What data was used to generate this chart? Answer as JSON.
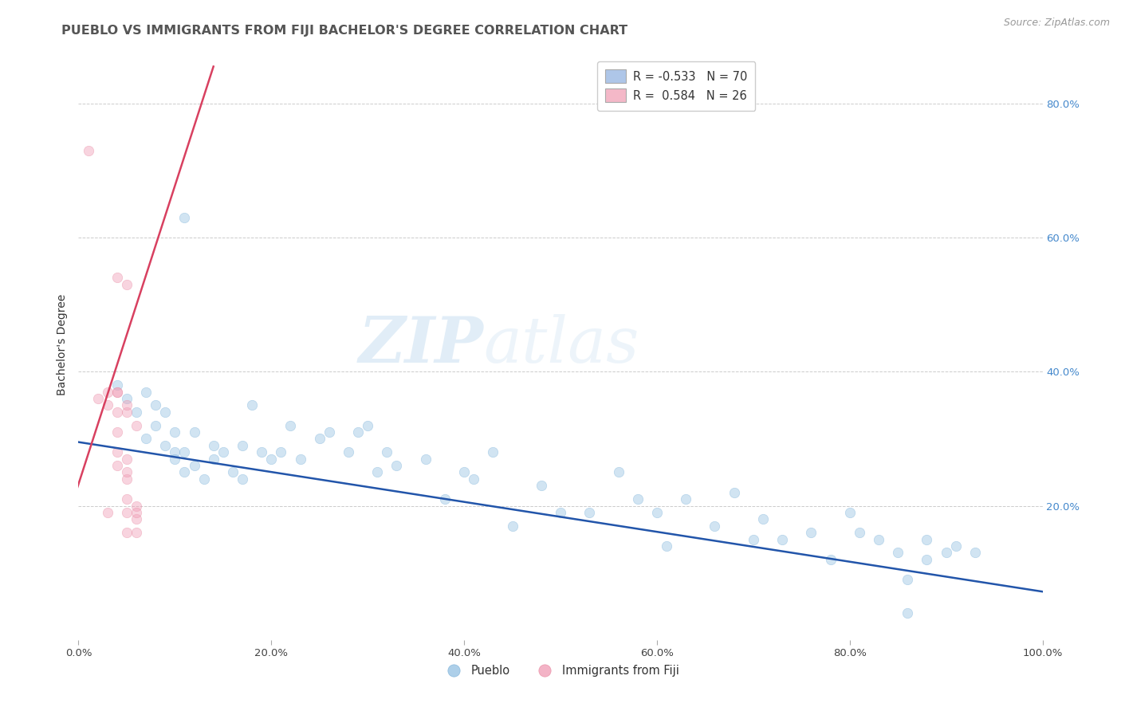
{
  "title": "PUEBLO VS IMMIGRANTS FROM FIJI BACHELOR'S DEGREE CORRELATION CHART",
  "source": "Source: ZipAtlas.com",
  "ylabel": "Bachelor's Degree",
  "watermark_zip": "ZIP",
  "watermark_atlas": "atlas",
  "legend_entries": [
    {
      "label_r": "R = -0.533",
      "label_n": "N = 70",
      "color": "#aec6e8"
    },
    {
      "label_r": "R =  0.584",
      "label_n": "N = 26",
      "color": "#f4b8c8"
    }
  ],
  "bottom_legend": [
    "Pueblo",
    "Immigrants from Fiji"
  ],
  "xlim": [
    0.0,
    1.0
  ],
  "ylim": [
    0.0,
    0.88
  ],
  "xticks": [
    0.0,
    0.2,
    0.4,
    0.6,
    0.8,
    1.0
  ],
  "yticks": [
    0.2,
    0.4,
    0.6,
    0.8
  ],
  "xticklabels": [
    "0.0%",
    "20.0%",
    "40.0%",
    "60.0%",
    "80.0%",
    "100.0%"
  ],
  "yticklabels": [
    "20.0%",
    "40.0%",
    "60.0%",
    "80.0%"
  ],
  "blue_scatter": [
    [
      0.04,
      0.38
    ],
    [
      0.05,
      0.36
    ],
    [
      0.06,
      0.34
    ],
    [
      0.07,
      0.37
    ],
    [
      0.07,
      0.3
    ],
    [
      0.08,
      0.35
    ],
    [
      0.08,
      0.32
    ],
    [
      0.09,
      0.29
    ],
    [
      0.09,
      0.34
    ],
    [
      0.1,
      0.31
    ],
    [
      0.1,
      0.28
    ],
    [
      0.1,
      0.27
    ],
    [
      0.11,
      0.25
    ],
    [
      0.11,
      0.28
    ],
    [
      0.12,
      0.31
    ],
    [
      0.12,
      0.26
    ],
    [
      0.13,
      0.24
    ],
    [
      0.14,
      0.27
    ],
    [
      0.14,
      0.29
    ],
    [
      0.15,
      0.28
    ],
    [
      0.16,
      0.25
    ],
    [
      0.17,
      0.24
    ],
    [
      0.17,
      0.29
    ],
    [
      0.18,
      0.35
    ],
    [
      0.19,
      0.28
    ],
    [
      0.2,
      0.27
    ],
    [
      0.21,
      0.28
    ],
    [
      0.22,
      0.32
    ],
    [
      0.23,
      0.27
    ],
    [
      0.25,
      0.3
    ],
    [
      0.26,
      0.31
    ],
    [
      0.28,
      0.28
    ],
    [
      0.29,
      0.31
    ],
    [
      0.3,
      0.32
    ],
    [
      0.31,
      0.25
    ],
    [
      0.32,
      0.28
    ],
    [
      0.33,
      0.26
    ],
    [
      0.36,
      0.27
    ],
    [
      0.38,
      0.21
    ],
    [
      0.4,
      0.25
    ],
    [
      0.41,
      0.24
    ],
    [
      0.43,
      0.28
    ],
    [
      0.45,
      0.17
    ],
    [
      0.48,
      0.23
    ],
    [
      0.5,
      0.19
    ],
    [
      0.53,
      0.19
    ],
    [
      0.56,
      0.25
    ],
    [
      0.58,
      0.21
    ],
    [
      0.6,
      0.19
    ],
    [
      0.61,
      0.14
    ],
    [
      0.63,
      0.21
    ],
    [
      0.66,
      0.17
    ],
    [
      0.68,
      0.22
    ],
    [
      0.7,
      0.15
    ],
    [
      0.71,
      0.18
    ],
    [
      0.73,
      0.15
    ],
    [
      0.76,
      0.16
    ],
    [
      0.78,
      0.12
    ],
    [
      0.8,
      0.19
    ],
    [
      0.81,
      0.16
    ],
    [
      0.83,
      0.15
    ],
    [
      0.85,
      0.13
    ],
    [
      0.86,
      0.09
    ],
    [
      0.86,
      0.04
    ],
    [
      0.88,
      0.12
    ],
    [
      0.88,
      0.15
    ],
    [
      0.9,
      0.13
    ],
    [
      0.91,
      0.14
    ],
    [
      0.93,
      0.13
    ],
    [
      0.11,
      0.63
    ]
  ],
  "pink_scatter": [
    [
      0.01,
      0.73
    ],
    [
      0.02,
      0.36
    ],
    [
      0.03,
      0.35
    ],
    [
      0.03,
      0.37
    ],
    [
      0.04,
      0.37
    ],
    [
      0.04,
      0.34
    ],
    [
      0.04,
      0.31
    ],
    [
      0.04,
      0.28
    ],
    [
      0.04,
      0.26
    ],
    [
      0.04,
      0.37
    ],
    [
      0.05,
      0.34
    ],
    [
      0.05,
      0.27
    ],
    [
      0.05,
      0.24
    ],
    [
      0.05,
      0.21
    ],
    [
      0.05,
      0.35
    ],
    [
      0.05,
      0.25
    ],
    [
      0.05,
      0.19
    ],
    [
      0.05,
      0.16
    ],
    [
      0.06,
      0.32
    ],
    [
      0.06,
      0.2
    ],
    [
      0.06,
      0.18
    ],
    [
      0.06,
      0.19
    ],
    [
      0.05,
      0.53
    ],
    [
      0.04,
      0.54
    ],
    [
      0.06,
      0.16
    ],
    [
      0.03,
      0.19
    ]
  ],
  "blue_line": [
    [
      0.0,
      0.295
    ],
    [
      1.0,
      0.072
    ]
  ],
  "pink_line": [
    [
      -0.005,
      0.21
    ],
    [
      0.14,
      0.855
    ]
  ],
  "scatter_size": 80,
  "scatter_alpha": 0.45,
  "line_width": 1.8,
  "blue_color": "#99c4e4",
  "pink_color": "#f0a0b8",
  "blue_edge_color": "#7ab0d8",
  "pink_edge_color": "#e888a0",
  "blue_line_color": "#2255aa",
  "pink_line_color": "#d84060",
  "grid_color": "#cccccc",
  "background_color": "#ffffff",
  "title_fontsize": 11.5,
  "axis_fontsize": 10,
  "tick_fontsize": 9.5,
  "legend_fontsize": 10.5
}
